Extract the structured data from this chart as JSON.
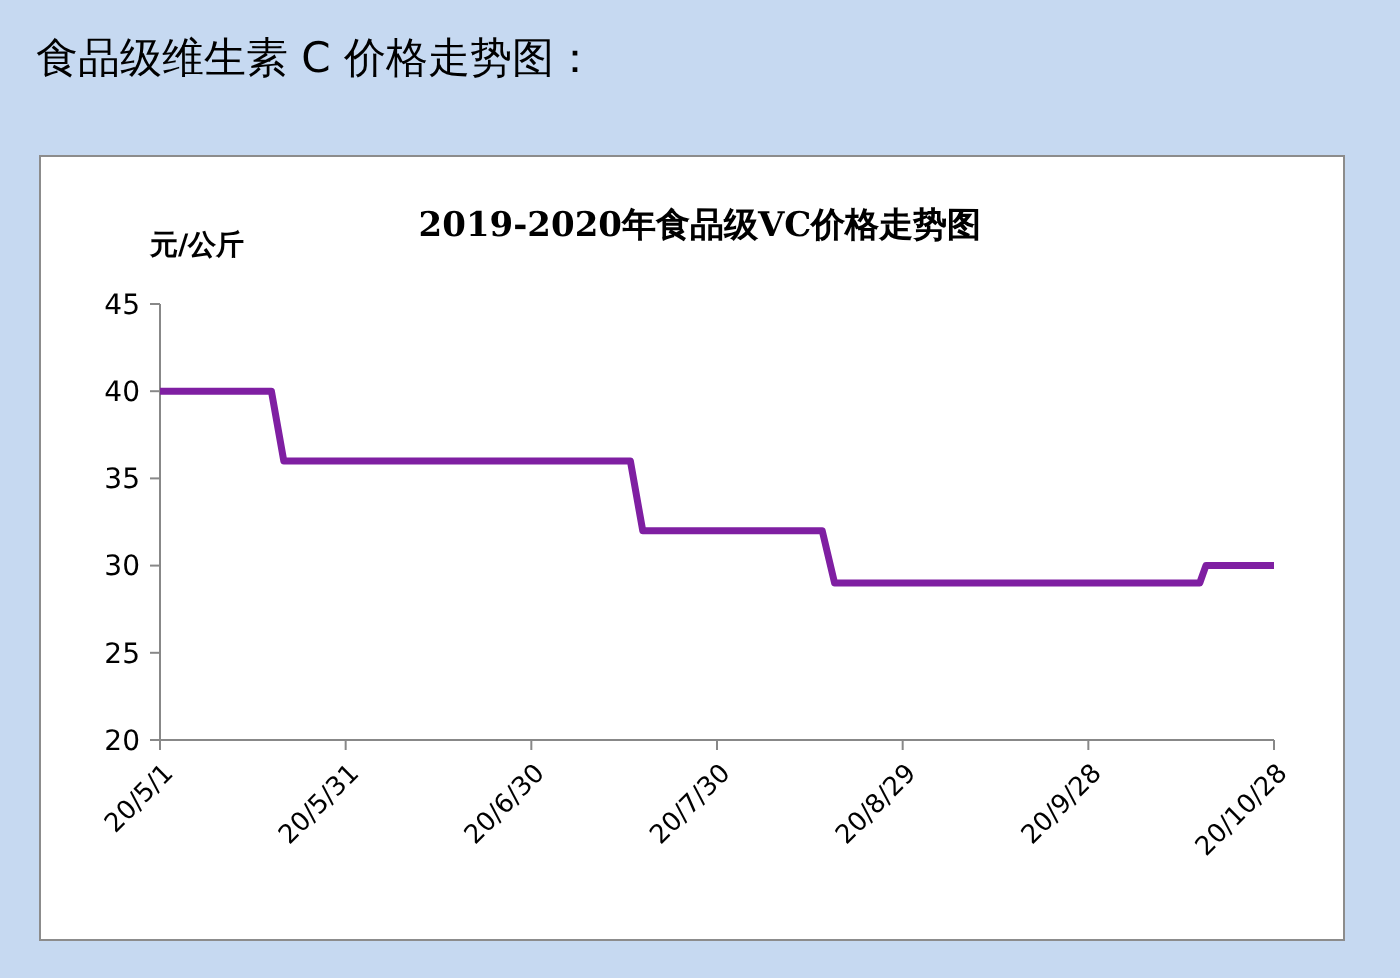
{
  "chart_data": {
    "type": "line",
    "title": "食品级维生素 C 价格走势图：",
    "subtitle": "2019-2020年食品级VC价格走势图",
    "ylabel": "元/公斤",
    "x": [
      "2020-05-01",
      "2020-05-19",
      "2020-05-21",
      "2020-07-16",
      "2020-07-18",
      "2020-08-16",
      "2020-08-18",
      "2020-10-16",
      "2020-10-17",
      "2020-10-28"
    ],
    "series": [
      {
        "color": "#7f1fa2",
        "values": [
          40,
          40,
          36,
          36,
          32,
          32,
          29,
          29,
          30,
          30
        ]
      }
    ],
    "xlim": [
      "2020-05-01",
      "2020-10-28"
    ],
    "xticks": [
      {
        "value": "2020-05-01",
        "label": "20/5/1"
      },
      {
        "value": "2020-05-31",
        "label": "20/5/31"
      },
      {
        "value": "2020-06-30",
        "label": "20/6/30"
      },
      {
        "value": "2020-07-30",
        "label": "20/7/30"
      },
      {
        "value": "2020-08-29",
        "label": "20/8/29"
      },
      {
        "value": "2020-09-28",
        "label": "20/9/28"
      },
      {
        "value": "2020-10-28",
        "label": "20/10/28"
      }
    ],
    "ylim": [
      20,
      45
    ],
    "yticks": [
      20,
      25,
      30,
      35,
      40,
      45
    ],
    "grid": false,
    "marker": "none",
    "line_style": "solid"
  }
}
